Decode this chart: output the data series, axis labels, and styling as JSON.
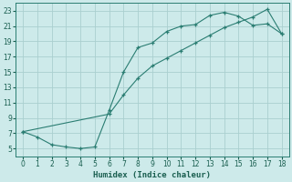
{
  "xlabel": "Humidex (Indice chaleur)",
  "bg_color": "#cdeaea",
  "grid_color": "#aacfcf",
  "line_color": "#2a7d72",
  "xticks": [
    0,
    1,
    2,
    3,
    4,
    5,
    6,
    7,
    8,
    9,
    10,
    11,
    12,
    13,
    14,
    15,
    16,
    17,
    18
  ],
  "yticks": [
    5,
    7,
    9,
    11,
    13,
    15,
    17,
    19,
    21,
    23
  ],
  "xlim": [
    -0.5,
    18.5
  ],
  "ylim": [
    4.0,
    24.0
  ],
  "line1_x": [
    0,
    1,
    2,
    3,
    4,
    5,
    6,
    7,
    8,
    9,
    10,
    11,
    12,
    13,
    14,
    15,
    16,
    17,
    18
  ],
  "line1_y": [
    7.2,
    6.5,
    5.5,
    5.2,
    5.0,
    5.2,
    10.0,
    15.0,
    18.2,
    18.8,
    20.3,
    21.0,
    21.2,
    22.4,
    22.8,
    22.3,
    21.1,
    21.3,
    20.0
  ],
  "line2_x": [
    0,
    6,
    7,
    8,
    9,
    10,
    11,
    12,
    13,
    14,
    15,
    16,
    17,
    18
  ],
  "line2_y": [
    7.2,
    9.5,
    12.0,
    14.2,
    15.8,
    16.8,
    17.8,
    18.8,
    19.8,
    20.8,
    21.5,
    22.2,
    23.2,
    20.0
  ],
  "xlabel_fontsize": 6.5,
  "tick_fontsize": 5.5
}
